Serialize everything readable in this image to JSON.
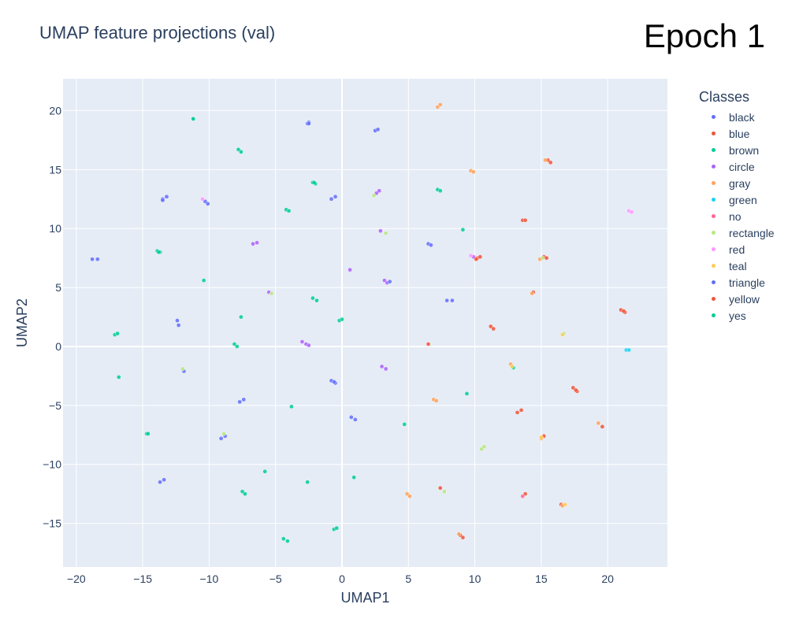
{
  "title": "UMAP feature projections (val)",
  "epoch_label": "Epoch 1",
  "legend_title": "Classes",
  "chart_data": {
    "type": "scatter",
    "title": "UMAP feature projections (val)",
    "xlabel": "UMAP1",
    "ylabel": "UMAP2",
    "xlim": [
      -21,
      24.5
    ],
    "ylim": [
      -18.7,
      22.7
    ],
    "xticks": [
      -20,
      -15,
      -10,
      -5,
      0,
      5,
      10,
      15,
      20
    ],
    "yticks": [
      -15,
      -10,
      -5,
      0,
      5,
      10,
      15,
      20
    ],
    "grid": true,
    "legend_position": "right",
    "series": [
      {
        "name": "black",
        "color": "#636efa",
        "points": [
          [
            -18.8,
            7.4
          ],
          [
            -18.4,
            7.4
          ],
          [
            -13.5,
            12.5
          ],
          [
            -13.2,
            12.7
          ],
          [
            -12.4,
            2.2
          ],
          [
            -12.3,
            1.8
          ],
          [
            -10.3,
            12.3
          ],
          [
            -10.1,
            12.1
          ],
          [
            -2.6,
            18.9
          ],
          [
            -2.5,
            19.0
          ],
          [
            -0.8,
            -2.9
          ],
          [
            -0.5,
            -3.1
          ],
          [
            2.5,
            18.3
          ],
          [
            2.7,
            18.4
          ],
          [
            7.9,
            3.9
          ],
          [
            8.3,
            3.9
          ],
          [
            -13.7,
            -11.5
          ],
          [
            -13.4,
            -11.3
          ],
          [
            -11.9,
            -2.1
          ],
          [
            -9.1,
            -7.8
          ],
          [
            -8.8,
            -7.6
          ],
          [
            -7.7,
            -4.7
          ],
          [
            -7.4,
            -4.5
          ],
          [
            -0.8,
            12.5
          ],
          [
            -0.5,
            12.7
          ],
          [
            6.5,
            8.7
          ],
          [
            6.7,
            8.6
          ],
          [
            0.7,
            -6.0
          ],
          [
            1.0,
            -6.2
          ]
        ]
      },
      {
        "name": "blue",
        "color": "#ef553b",
        "points": [
          [
            10.2,
            7.5
          ],
          [
            10.4,
            7.6
          ],
          [
            13.6,
            10.7
          ],
          [
            13.8,
            10.7
          ],
          [
            15.5,
            15.8
          ],
          [
            15.7,
            15.6
          ],
          [
            11.2,
            1.7
          ],
          [
            11.4,
            1.5
          ],
          [
            6.5,
            0.2
          ],
          [
            17.4,
            -3.5
          ],
          [
            17.7,
            -3.8
          ],
          [
            21.0,
            3.1
          ],
          [
            21.3,
            2.9
          ],
          [
            13.2,
            -5.6
          ],
          [
            13.5,
            -5.4
          ],
          [
            15.2,
            -7.6
          ],
          [
            19.6,
            -6.8
          ],
          [
            16.5,
            -13.4
          ],
          [
            13.8,
            -12.5
          ],
          [
            8.9,
            -16.0
          ],
          [
            9.1,
            -16.2
          ],
          [
            7.4,
            -12.0
          ],
          [
            15.2,
            7.6
          ],
          [
            14.4,
            4.6
          ]
        ]
      },
      {
        "name": "brown",
        "color": "#00cc96",
        "points": [
          [
            -11.2,
            19.3
          ],
          [
            -7.8,
            16.7
          ],
          [
            -7.6,
            16.5
          ],
          [
            -2.2,
            13.9
          ],
          [
            -2.0,
            13.8
          ],
          [
            -4.2,
            11.6
          ],
          [
            -4.0,
            11.5
          ],
          [
            -13.9,
            8.1
          ],
          [
            -13.7,
            8.0
          ],
          [
            -10.4,
            5.6
          ],
          [
            -7.6,
            2.5
          ],
          [
            -8.1,
            0.2
          ],
          [
            -7.9,
            0.0
          ],
          [
            -2.2,
            4.1
          ],
          [
            -1.9,
            3.9
          ],
          [
            -0.2,
            2.2
          ],
          [
            0.0,
            2.3
          ],
          [
            -17.1,
            1.0
          ],
          [
            -16.9,
            1.1
          ],
          [
            -16.8,
            -2.6
          ],
          [
            -14.7,
            -7.4
          ],
          [
            -3.8,
            -5.1
          ],
          [
            -5.8,
            -10.6
          ],
          [
            -2.6,
            -11.5
          ],
          [
            -7.5,
            -12.3
          ],
          [
            -7.3,
            -12.5
          ],
          [
            -0.6,
            -15.5
          ],
          [
            -0.4,
            -15.4
          ],
          [
            -4.4,
            -16.3
          ],
          [
            -4.1,
            -16.5
          ],
          [
            0.9,
            -11.1
          ],
          [
            4.7,
            -6.6
          ],
          [
            9.4,
            -4.0
          ],
          [
            9.1,
            9.9
          ],
          [
            7.2,
            13.3
          ],
          [
            7.4,
            13.2
          ],
          [
            12.9,
            -1.8
          ]
        ]
      },
      {
        "name": "circle",
        "color": "#ab63fa",
        "points": [
          [
            -6.7,
            8.7
          ],
          [
            -6.4,
            8.8
          ],
          [
            -5.5,
            4.6
          ],
          [
            -3.0,
            0.4
          ],
          [
            -2.7,
            0.2
          ],
          [
            -2.5,
            0.1
          ],
          [
            3.0,
            -1.7
          ],
          [
            3.3,
            -1.9
          ],
          [
            3.2,
            5.6
          ],
          [
            3.4,
            5.4
          ],
          [
            2.6,
            13.0
          ],
          [
            2.8,
            13.2
          ],
          [
            0.6,
            6.5
          ],
          [
            2.9,
            9.8
          ],
          [
            9.9,
            7.6
          ]
        ]
      },
      {
        "name": "gray",
        "color": "#ffa15a",
        "points": [
          [
            7.2,
            20.3
          ],
          [
            7.4,
            20.5
          ],
          [
            9.7,
            14.9
          ],
          [
            9.9,
            14.8
          ],
          [
            15.3,
            15.8
          ],
          [
            14.9,
            7.4
          ],
          [
            14.3,
            4.5
          ],
          [
            12.7,
            -1.5
          ],
          [
            6.9,
            -4.5
          ],
          [
            7.1,
            -4.6
          ],
          [
            15.0,
            -7.8
          ],
          [
            19.3,
            -6.5
          ],
          [
            16.6,
            -13.5
          ],
          [
            4.9,
            -12.5
          ],
          [
            5.1,
            -12.7
          ],
          [
            8.8,
            -15.9
          ]
        ]
      },
      {
        "name": "green",
        "color": "#19d3f3",
        "points": [
          [
            21.4,
            -0.3
          ],
          [
            21.6,
            -0.3
          ]
        ]
      },
      {
        "name": "no",
        "color": "#ff6692",
        "points": [
          [
            13.6,
            -12.7
          ]
        ]
      },
      {
        "name": "rectangle",
        "color": "#b6e880",
        "points": [
          [
            -12.0,
            -1.9
          ],
          [
            -8.9,
            -7.4
          ],
          [
            -5.3,
            4.5
          ],
          [
            2.4,
            12.8
          ],
          [
            3.3,
            9.6
          ],
          [
            7.7,
            -12.3
          ],
          [
            10.5,
            -8.7
          ],
          [
            10.7,
            -8.5
          ],
          [
            15.1,
            7.5
          ],
          [
            16.7,
            1.1
          ]
        ]
      },
      {
        "name": "red",
        "color": "#ff97ff",
        "points": [
          [
            21.6,
            11.5
          ],
          [
            21.8,
            11.4
          ],
          [
            -10.5,
            12.5
          ],
          [
            9.7,
            7.7
          ]
        ]
      },
      {
        "name": "teal",
        "color": "#fecb52",
        "points": [
          [
            16.6,
            1.0
          ],
          [
            15.0,
            -7.7
          ],
          [
            12.8,
            -1.7
          ],
          [
            16.8,
            -13.4
          ]
        ]
      },
      {
        "name": "triangle",
        "color": "#636efa",
        "points": [
          [
            -2.5,
            18.9
          ],
          [
            3.6,
            5.5
          ],
          [
            -0.6,
            -3.0
          ],
          [
            -13.5,
            12.4
          ]
        ]
      },
      {
        "name": "yellow",
        "color": "#ef553b",
        "points": [
          [
            15.4,
            7.5
          ],
          [
            10.1,
            7.4
          ],
          [
            21.2,
            3.0
          ],
          [
            17.6,
            -3.7
          ]
        ]
      },
      {
        "name": "yes",
        "color": "#00cc96",
        "points": [
          [
            -11.2,
            19.3
          ],
          [
            -13.8,
            8.0
          ],
          [
            -2.1,
            13.9
          ],
          [
            -14.6,
            -7.4
          ]
        ]
      }
    ]
  }
}
